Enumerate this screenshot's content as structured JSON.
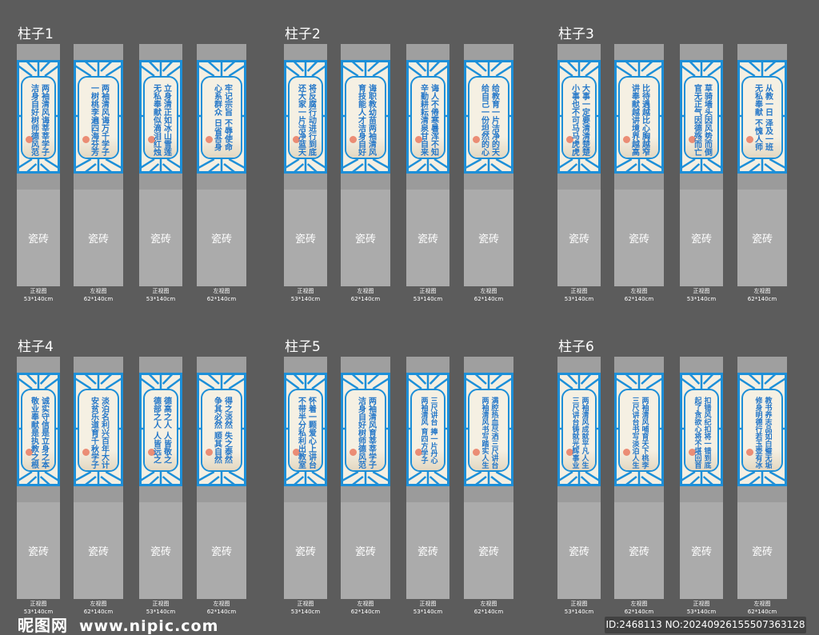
{
  "colors": {
    "background": "#5c5c5c",
    "frame_blue": "#1d8fd8",
    "text_blue": "#2577c8",
    "panel_cream": "#f4efe2",
    "tile_gray": "#ababab"
  },
  "tile_label": "瓷砖",
  "view_labels": [
    {
      "name": "正视图",
      "size": "53*140cm"
    },
    {
      "name": "左视图",
      "size": "62*140cm"
    },
    {
      "name": "正视图",
      "size": "53*140cm"
    },
    {
      "name": "左视图",
      "size": "62*140cm"
    }
  ],
  "groups": [
    {
      "title": "柱子1",
      "panels": [
        [
          "两袖清风诲莘莘学子",
          "洁身自好树师德风范"
        ],
        [
          "两袖清风诲万千学子",
          "一树桃李遍四海芬芳"
        ],
        [
          "立身清正如冰山雪莲",
          "无私奉献似滴泪红烛"
        ],
        [
          "牢记宗旨 不辱使命",
          "心系群众 日省吾身"
        ]
      ]
    },
    {
      "title": "柱子2",
      "panels": [
        [
          "将反腐行动进行到底",
          "还大家一片洁净蓝天"
        ],
        [
          "诲职教幼苗两袖清风",
          "育技能人才洁身自好"
        ],
        [
          "诲人不倦寒暑浑不知",
          "辛勤耕耘清泉甘自来"
        ],
        [
          "给教育一片洁净的天",
          "给自己一份坦然的心"
        ]
      ]
    },
    {
      "title": "柱子3",
      "panels": [
        [
          "大事一定要清清楚楚",
          "小事也不可马马虎虎"
        ],
        [
          "比待遇越比心胸越窄",
          "讲奉献越讲境界越高"
        ],
        [
          "草骑墙头因风势而倒",
          "官无正气因德殇而亡"
        ],
        [
          "从教一日 泽及一班",
          "无私奉献 不愧人师"
        ]
      ]
    },
    {
      "title": "柱子4",
      "panels": [
        [
          "诚实守信是立身之本",
          "敬业奉献是执教之根"
        ],
        [
          "淡泊名利兴百年大计",
          "安贫乐道育千秋学子"
        ],
        [
          "德高之人 人皆敬之",
          "德部之人 人皆远之"
        ],
        [
          "得之淡然 失之泰然",
          "争其必然 顺其自然"
        ]
      ]
    },
    {
      "title": "柱子5",
      "panels": [
        [
          "怀着一颗爱心上讲台",
          "不带半分私利出教室"
        ],
        [
          "两袖清风育莘莘学子",
          "洁身自好树师德风范"
        ],
        [
          "三尺讲台 捧一片丹心",
          "两袖清风 育四方学子"
        ],
        [
          "满腔热血尽洒三尺讲台",
          "两袖清风书写踏实人生"
        ]
      ]
    },
    {
      "title": "柱子6",
      "panels": [
        [
          "两袖清风成就平凡人生",
          "三尺讲台铸就光辉事业"
        ],
        [
          "两袖清风哺育天下桃李",
          "三尺讲台书写淡泊人生"
        ],
        [
          "扣错风纪扣将一错到底",
          "起了贪欲心将不堪回首"
        ],
        [
          "教书养志品如白璧无垢",
          "修身明德行若玉壶有冰"
        ]
      ]
    }
  ],
  "watermark": {
    "logo": "昵图网",
    "url": "www.nipic.com"
  },
  "image_id": "ID:2468113 NO:20240926155507363128"
}
